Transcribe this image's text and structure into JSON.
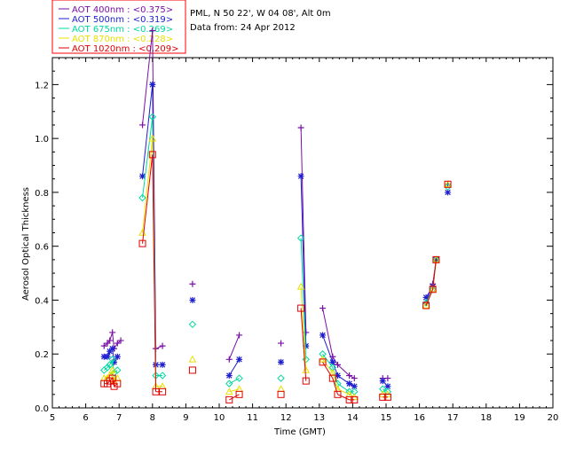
{
  "chart_data": {
    "type": "scatter",
    "xlabel": "Time (GMT)",
    "ylabel": "Aerosol Optical Thickness",
    "xlim": [
      5,
      20
    ],
    "ylim": [
      0,
      1.3
    ],
    "xticks": [
      "5",
      "6",
      "7",
      "8",
      "9",
      "10",
      "11",
      "12",
      "13",
      "14",
      "15",
      "16",
      "17",
      "18",
      "19",
      "20"
    ],
    "yticks": [
      "0.0",
      "0.2",
      "0.4",
      "0.6",
      "0.8",
      "1.0",
      "1.2"
    ],
    "info": [
      "PML, N 50 22', W 04 08', Alt 0m",
      "Data from: 24 Apr 2012"
    ],
    "series": [
      {
        "name": "AOT  400nm : <0.375>",
        "color": "#7a0fa6",
        "marker": "plus",
        "points": [
          [
            6.55,
            0.23
          ],
          [
            6.65,
            0.24
          ],
          [
            6.72,
            0.25
          ],
          [
            6.8,
            0.28
          ],
          [
            6.85,
            0.22
          ],
          [
            6.95,
            0.24
          ],
          [
            7.05,
            0.25
          ],
          [
            7.7,
            1.05
          ],
          [
            8.0,
            1.4
          ],
          [
            8.1,
            0.22
          ],
          [
            8.3,
            0.23
          ],
          [
            9.2,
            0.46
          ],
          [
            10.3,
            0.18
          ],
          [
            10.6,
            0.27
          ],
          [
            11.85,
            0.24
          ],
          [
            12.45,
            1.04
          ],
          [
            12.6,
            0.28
          ],
          [
            13.1,
            0.37
          ],
          [
            13.4,
            0.19
          ],
          [
            13.55,
            0.16
          ],
          [
            13.9,
            0.12
          ],
          [
            14.05,
            0.11
          ],
          [
            14.9,
            0.11
          ],
          [
            15.05,
            0.11
          ],
          [
            16.2,
            0.39
          ],
          [
            16.4,
            0.46
          ],
          [
            16.5,
            0.55
          ],
          [
            16.85,
            0.83
          ]
        ]
      },
      {
        "name": "AOT  500nm : <0.319>",
        "color": "#1f1fd0",
        "marker": "star",
        "points": [
          [
            6.55,
            0.19
          ],
          [
            6.65,
            0.19
          ],
          [
            6.72,
            0.21
          ],
          [
            6.8,
            0.22
          ],
          [
            6.85,
            0.17
          ],
          [
            6.95,
            0.19
          ],
          [
            7.7,
            0.86
          ],
          [
            8.0,
            1.2
          ],
          [
            8.1,
            0.16
          ],
          [
            8.3,
            0.16
          ],
          [
            9.2,
            0.4
          ],
          [
            10.3,
            0.12
          ],
          [
            10.6,
            0.18
          ],
          [
            11.85,
            0.17
          ],
          [
            12.45,
            0.86
          ],
          [
            12.6,
            0.23
          ],
          [
            13.1,
            0.27
          ],
          [
            13.4,
            0.17
          ],
          [
            13.55,
            0.12
          ],
          [
            13.9,
            0.09
          ],
          [
            14.05,
            0.08
          ],
          [
            14.9,
            0.1
          ],
          [
            15.05,
            0.08
          ],
          [
            16.2,
            0.41
          ],
          [
            16.4,
            0.45
          ],
          [
            16.5,
            0.55
          ],
          [
            16.85,
            0.8
          ]
        ]
      },
      {
        "name": "AOT  675nm : <0.269>",
        "color": "#00d8a0",
        "marker": "diamond",
        "points": [
          [
            6.55,
            0.14
          ],
          [
            6.65,
            0.15
          ],
          [
            6.72,
            0.16
          ],
          [
            6.8,
            0.18
          ],
          [
            6.85,
            0.13
          ],
          [
            6.95,
            0.14
          ],
          [
            7.7,
            0.78
          ],
          [
            8.0,
            1.08
          ],
          [
            8.1,
            0.12
          ],
          [
            8.3,
            0.12
          ],
          [
            9.2,
            0.31
          ],
          [
            10.3,
            0.09
          ],
          [
            10.6,
            0.11
          ],
          [
            11.85,
            0.11
          ],
          [
            12.45,
            0.63
          ],
          [
            12.6,
            0.18
          ],
          [
            13.1,
            0.2
          ],
          [
            13.4,
            0.15
          ],
          [
            13.55,
            0.09
          ],
          [
            13.9,
            0.06
          ],
          [
            14.05,
            0.06
          ],
          [
            14.9,
            0.07
          ],
          [
            15.05,
            0.06
          ],
          [
            16.2,
            0.39
          ],
          [
            16.4,
            0.44
          ],
          [
            16.5,
            0.55
          ],
          [
            16.85,
            0.82
          ]
        ]
      },
      {
        "name": "AOT  870nm : <0.228>",
        "color": "#e8e000",
        "marker": "triangle",
        "points": [
          [
            6.55,
            0.11
          ],
          [
            6.65,
            0.11
          ],
          [
            6.72,
            0.12
          ],
          [
            6.8,
            0.14
          ],
          [
            6.85,
            0.1
          ],
          [
            6.95,
            0.11
          ],
          [
            7.7,
            0.65
          ],
          [
            8.0,
            1.0
          ],
          [
            8.1,
            0.08
          ],
          [
            8.3,
            0.08
          ],
          [
            9.2,
            0.18
          ],
          [
            10.3,
            0.06
          ],
          [
            10.6,
            0.07
          ],
          [
            11.85,
            0.07
          ],
          [
            12.45,
            0.45
          ],
          [
            12.6,
            0.14
          ],
          [
            13.1,
            0.18
          ],
          [
            13.4,
            0.13
          ],
          [
            13.55,
            0.07
          ],
          [
            13.9,
            0.05
          ],
          [
            14.05,
            0.04
          ],
          [
            14.9,
            0.05
          ],
          [
            15.05,
            0.05
          ],
          [
            16.2,
            0.38
          ],
          [
            16.4,
            0.44
          ],
          [
            16.5,
            0.55
          ],
          [
            16.85,
            0.83
          ]
        ]
      },
      {
        "name": "AOT 1020nm : <0.209>",
        "color": "#e00000",
        "marker": "square",
        "points": [
          [
            6.55,
            0.09
          ],
          [
            6.65,
            0.09
          ],
          [
            6.72,
            0.1
          ],
          [
            6.8,
            0.11
          ],
          [
            6.85,
            0.08
          ],
          [
            6.95,
            0.09
          ],
          [
            7.7,
            0.61
          ],
          [
            8.0,
            0.94
          ],
          [
            8.1,
            0.06
          ],
          [
            8.3,
            0.06
          ],
          [
            9.2,
            0.14
          ],
          [
            10.3,
            0.03
          ],
          [
            10.6,
            0.05
          ],
          [
            11.85,
            0.05
          ],
          [
            12.45,
            0.37
          ],
          [
            12.6,
            0.1
          ],
          [
            13.1,
            0.17
          ],
          [
            13.4,
            0.11
          ],
          [
            13.55,
            0.05
          ],
          [
            13.9,
            0.03
          ],
          [
            14.05,
            0.03
          ],
          [
            14.9,
            0.04
          ],
          [
            15.05,
            0.04
          ],
          [
            16.2,
            0.38
          ],
          [
            16.4,
            0.44
          ],
          [
            16.5,
            0.55
          ],
          [
            16.85,
            0.83
          ]
        ]
      }
    ]
  }
}
